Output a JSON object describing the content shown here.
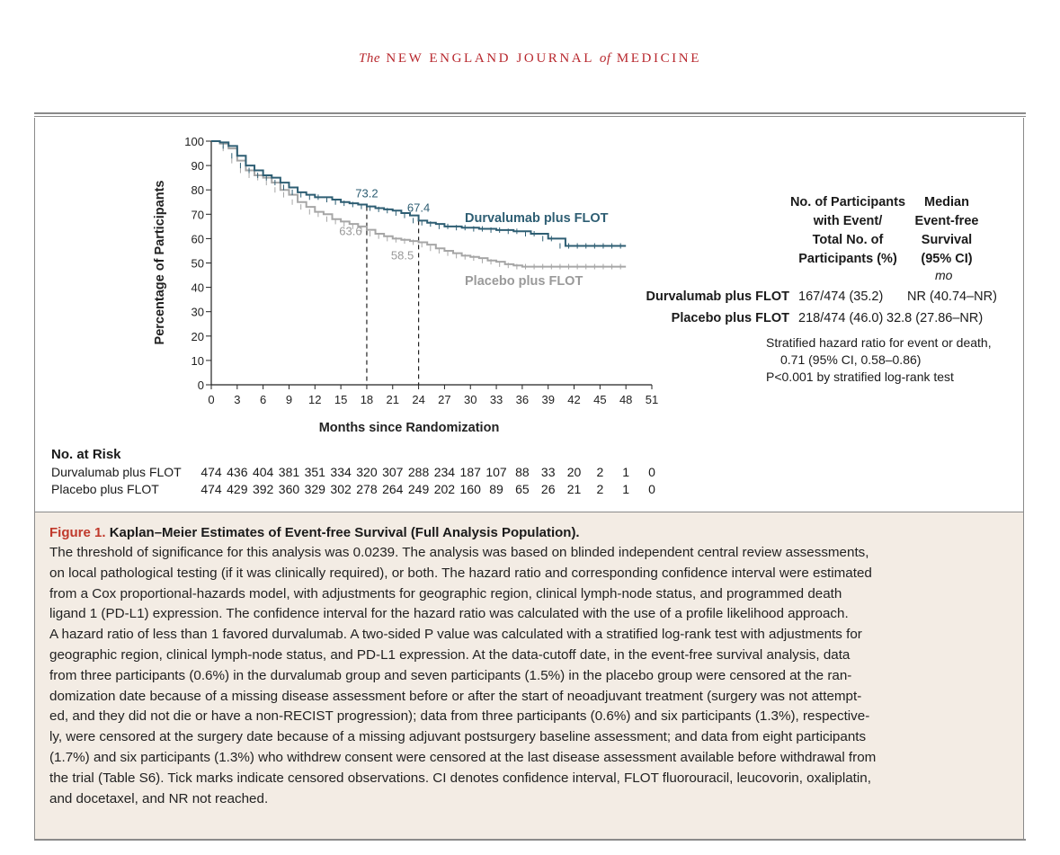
{
  "journal": {
    "the": "The",
    "name1": "NEW ENGLAND JOURNAL",
    "of": "of",
    "name2": "MEDICINE"
  },
  "chart_data": {
    "type": "line",
    "ylabel": "Percentage of Participants",
    "xlabel": "Months since Randomization",
    "xlim": [
      0,
      51
    ],
    "ylim": [
      0,
      100
    ],
    "xticks": [
      0,
      3,
      6,
      9,
      12,
      15,
      18,
      21,
      24,
      27,
      30,
      33,
      36,
      39,
      42,
      45,
      48,
      51
    ],
    "yticks": [
      0,
      10,
      20,
      30,
      40,
      50,
      60,
      70,
      80,
      90,
      100
    ],
    "grid": false,
    "series": [
      {
        "name": "Durvalumab plus FLOT",
        "color": "#2e5e73",
        "x": [
          0,
          1,
          2,
          3,
          4,
          5,
          6,
          7,
          8,
          9,
          10,
          11,
          12,
          13,
          14,
          15,
          16,
          17,
          18,
          19,
          20,
          21,
          22,
          23,
          24,
          25,
          26,
          27,
          28,
          29,
          30,
          31,
          32,
          33,
          34,
          35,
          36,
          37,
          38,
          39,
          40,
          41,
          42,
          43,
          44,
          45,
          46,
          47,
          48
        ],
        "y": [
          100,
          99.5,
          98,
          94,
          90,
          88,
          86,
          85,
          83,
          81,
          79,
          78,
          77,
          77,
          76,
          75,
          74.5,
          74,
          73.2,
          72.5,
          72,
          71.5,
          70.5,
          69.5,
          67.4,
          66.5,
          66,
          65,
          65,
          64.5,
          64.5,
          64,
          64,
          63.5,
          63.5,
          63,
          63,
          62,
          62,
          60,
          60,
          57,
          57,
          57,
          57,
          57,
          57,
          57,
          57
        ]
      },
      {
        "name": "Placebo plus FLOT",
        "color": "#a6a6a6",
        "x": [
          0,
          1,
          2,
          3,
          4,
          5,
          6,
          7,
          8,
          9,
          10,
          11,
          12,
          13,
          14,
          15,
          16,
          17,
          18,
          19,
          20,
          21,
          22,
          23,
          24,
          25,
          26,
          27,
          28,
          29,
          30,
          31,
          32,
          33,
          34,
          35,
          36,
          37,
          38,
          39,
          40,
          41,
          42,
          43,
          44,
          45,
          46,
          47,
          48
        ],
        "y": [
          100,
          99,
          97,
          92,
          88,
          86,
          85,
          83,
          80,
          78,
          75,
          73,
          71,
          70,
          68,
          67,
          66,
          65,
          63.6,
          62,
          61,
          60,
          59.5,
          59,
          58.5,
          57.5,
          56,
          55,
          54,
          53,
          52.5,
          52,
          51,
          50.5,
          49.5,
          49,
          48.5,
          48.5,
          48.5,
          48.5,
          48.5,
          48.5,
          48.5,
          48.5,
          48.5,
          48.5,
          48.5,
          48.5,
          48.5
        ]
      }
    ],
    "annotations": [
      {
        "x": 18,
        "y": 73.2,
        "text": "73.2",
        "series": "Durvalumab plus FLOT"
      },
      {
        "x": 24,
        "y": 67.4,
        "text": "67.4",
        "series": "Durvalumab plus FLOT"
      },
      {
        "x": 18,
        "y": 63.6,
        "text": "63.6",
        "series": "Placebo plus FLOT"
      },
      {
        "x": 24,
        "y": 58.5,
        "text": "58.5",
        "series": "Placebo plus FLOT"
      }
    ],
    "curve_labels": {
      "durva": "Durvalumab plus FLOT",
      "placebo": "Placebo plus FLOT"
    }
  },
  "risk_table": {
    "title": "No. at Risk",
    "rows": [
      {
        "label": "Durvalumab plus FLOT",
        "values": [
          "474",
          "436",
          "404",
          "381",
          "351",
          "334",
          "320",
          "307",
          "288",
          "234",
          "187",
          "107",
          "88",
          "33",
          "20",
          "2",
          "1",
          "0"
        ]
      },
      {
        "label": "Placebo plus FLOT",
        "values": [
          "474",
          "429",
          "392",
          "360",
          "329",
          "302",
          "278",
          "264",
          "249",
          "202",
          "160",
          "89",
          "65",
          "26",
          "21",
          "2",
          "1",
          "0"
        ]
      }
    ]
  },
  "legend": {
    "hdr1": [
      "No. of Participants",
      "with Event/",
      "Total No. of",
      "Participants (%)"
    ],
    "hdr2": [
      "Median",
      "Event-free",
      "Survival",
      "(95% CI)"
    ],
    "unit": "mo",
    "rows": [
      {
        "name": "Durvalumab plus FLOT",
        "events": "167/474 (35.2)",
        "median": "NR (40.74–NR)"
      },
      {
        "name": "Placebo plus FLOT",
        "events": "218/474 (46.0)",
        "median": "32.8 (27.86–NR)"
      }
    ],
    "stats": [
      "Stratified hazard ratio for event or death,",
      "0.71 (95% CI, 0.58–0.86)",
      "P<0.001 by stratified log-rank test"
    ]
  },
  "caption": {
    "figure_no": "Figure 1.",
    "title": "Kaplan–Meier Estimates of Event-free Survival (Full Analysis Population).",
    "lines": [
      "The threshold of significance for this analysis was 0.0239. The analysis was based on blinded independent central review assessments,",
      "on local pathological testing (if it was clinically required), or both. The hazard ratio and corresponding confidence interval were estimated",
      "from a Cox proportional-hazards model, with adjustments for geographic region, clinical lymph-node status, and programmed death",
      "ligand 1 (PD-L1) expression. The confidence interval for the hazard ratio was calculated with the use of a profile likelihood approach.",
      "A hazard ratio of less than 1 favored durvalumab. A two-sided P value was calculated with a stratified log-rank test with adjustments for",
      "geographic region, clinical lymph-node status, and PD-L1 expression. At the data-cutoff date, in the event-free survival analysis, data",
      "from three participants (0.6%) in the durvalumab group and seven participants (1.5%) in the placebo group were censored at the ran-",
      "domization date because of a missing disease assessment before or after the start of neoadjuvant treatment (surgery was not attempt-",
      "ed, and they did not die or have a non-RECIST progression); data from three participants (0.6%) and six participants (1.3%), respective-",
      "ly, were censored at the surgery date because of a missing adjuvant postsurgery baseline assessment; and data from eight participants",
      "(1.7%) and six participants (1.3%) who withdrew consent were censored at the last disease assessment available before withdrawal from",
      "the trial (Table S6). Tick marks indicate censored observations. CI denotes confidence interval, FLOT fluorouracil, leucovorin, oxaliplatin,",
      "and docetaxel, and NR not reached."
    ]
  }
}
